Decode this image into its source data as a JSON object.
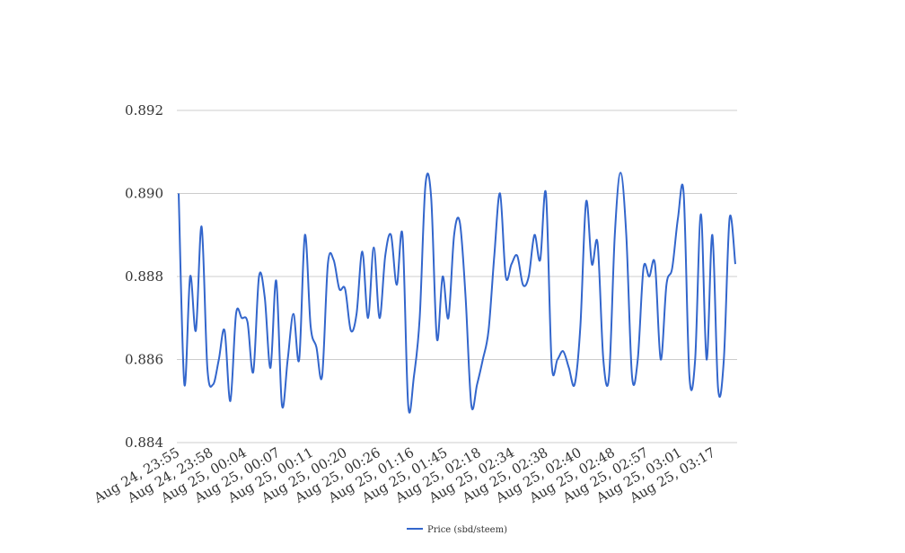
{
  "chart_data": {
    "type": "line",
    "title": "",
    "xlabel": "",
    "ylabel": "",
    "ylim": [
      0.884,
      0.892
    ],
    "yticks": [
      "0.884",
      "0.886",
      "0.888",
      "0.890",
      "0.892"
    ],
    "grid": true,
    "legend_position": "bottom",
    "x_tick_labels": [
      "Aug 24, 23:55",
      "Aug 24, 23:58",
      "Aug 25, 00:04",
      "Aug 25, 00:07",
      "Aug 25, 00:11",
      "Aug 25, 00:20",
      "Aug 25, 00:26",
      "Aug 25, 01:16",
      "Aug 25, 01:45",
      "Aug 25, 02:18",
      "Aug 25, 02:34",
      "Aug 25, 02:38",
      "Aug 25, 02:40",
      "Aug 25, 02:48",
      "Aug 25, 02:57",
      "Aug 25, 03:01",
      "Aug 25, 03:17"
    ],
    "series": [
      {
        "name": "Price (sbd/steem)",
        "color": "#3366cc",
        "values": [
          0.89,
          0.8854,
          0.888,
          0.8867,
          0.8892,
          0.8858,
          0.8854,
          0.886,
          0.8867,
          0.885,
          0.8871,
          0.887,
          0.8869,
          0.8857,
          0.888,
          0.8875,
          0.8858,
          0.8879,
          0.8849,
          0.886,
          0.8871,
          0.886,
          0.889,
          0.8868,
          0.8863,
          0.8856,
          0.8883,
          0.8884,
          0.8877,
          0.8877,
          0.8867,
          0.8871,
          0.8886,
          0.887,
          0.8887,
          0.887,
          0.8885,
          0.889,
          0.8878,
          0.889,
          0.8849,
          0.8856,
          0.887,
          0.8902,
          0.8899,
          0.8865,
          0.888,
          0.887,
          0.889,
          0.8893,
          0.8875,
          0.8849,
          0.8854,
          0.886,
          0.8867,
          0.8885,
          0.89,
          0.888,
          0.8883,
          0.8885,
          0.8878,
          0.888,
          0.889,
          0.8884,
          0.89,
          0.8859,
          0.886,
          0.8862,
          0.8858,
          0.8854,
          0.8868,
          0.8898,
          0.8883,
          0.8888,
          0.886,
          0.8856,
          0.889,
          0.8905,
          0.889,
          0.8856,
          0.886,
          0.8882,
          0.888,
          0.8883,
          0.886,
          0.8878,
          0.8882,
          0.8894,
          0.89,
          0.8856,
          0.886,
          0.8895,
          0.886,
          0.889,
          0.8853,
          0.886,
          0.8894,
          0.8883
        ]
      }
    ]
  }
}
